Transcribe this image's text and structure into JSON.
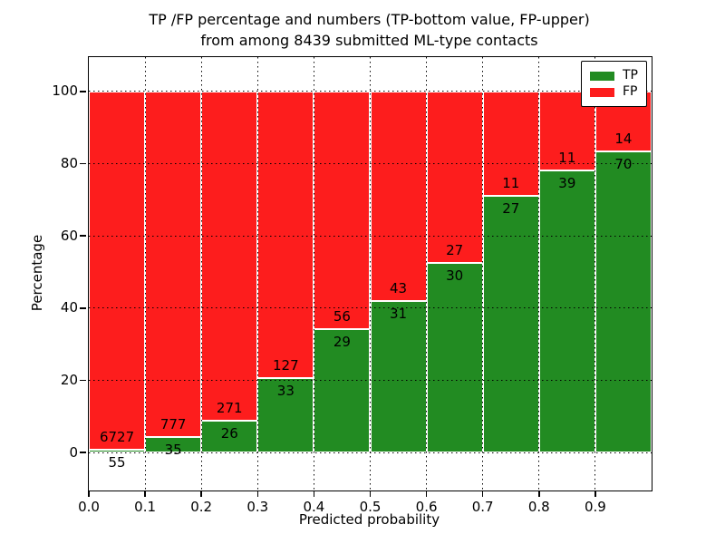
{
  "title": {
    "line1": "TP /FP percentage and numbers (TP-bottom value, FP-upper)",
    "line2": "from among 8439 submitted ML-type contacts"
  },
  "chart_data": {
    "type": "bar",
    "stacked": true,
    "normalized": "each bar normalized to 100%, annotated with raw counts",
    "title": "TP /FP percentage and numbers (TP-bottom value, FP-upper) from among 8439 submitted ML-type contacts",
    "xlabel": "Predicted probability",
    "ylabel": "Percentage",
    "xlim": [
      0.0,
      1.0
    ],
    "ylim": [
      -10.5,
      109.5
    ],
    "yticks": [
      0,
      20,
      40,
      60,
      80,
      100
    ],
    "xticks": [
      "0.0",
      "0.1",
      "0.2",
      "0.3",
      "0.4",
      "0.5",
      "0.6",
      "0.7",
      "0.8",
      "0.9"
    ],
    "grid": "dotted black, vertical at each x tick, horizontal at each y tick",
    "legend": {
      "position": "upper right"
    },
    "series": [
      {
        "name": "TP",
        "color": "#228b22"
      },
      {
        "name": "FP",
        "color": "#fd1d1d"
      }
    ],
    "bins": [
      {
        "x_start": 0.0,
        "x_end": 0.1,
        "tp_count": 55,
        "fp_count": 6727
      },
      {
        "x_start": 0.1,
        "x_end": 0.2,
        "tp_count": 35,
        "fp_count": 777
      },
      {
        "x_start": 0.2,
        "x_end": 0.3,
        "tp_count": 26,
        "fp_count": 271
      },
      {
        "x_start": 0.3,
        "x_end": 0.4,
        "tp_count": 33,
        "fp_count": 127
      },
      {
        "x_start": 0.4,
        "x_end": 0.5,
        "tp_count": 29,
        "fp_count": 56
      },
      {
        "x_start": 0.5,
        "x_end": 0.6,
        "tp_count": 31,
        "fp_count": 43
      },
      {
        "x_start": 0.6,
        "x_end": 0.7,
        "tp_count": 30,
        "fp_count": 27
      },
      {
        "x_start": 0.7,
        "x_end": 0.8,
        "tp_count": 27,
        "fp_count": 11
      },
      {
        "x_start": 0.8,
        "x_end": 0.9,
        "tp_count": 39,
        "fp_count": 11
      },
      {
        "x_start": 0.9,
        "x_end": 1.0,
        "tp_count": 70,
        "fp_count": 14
      }
    ]
  }
}
